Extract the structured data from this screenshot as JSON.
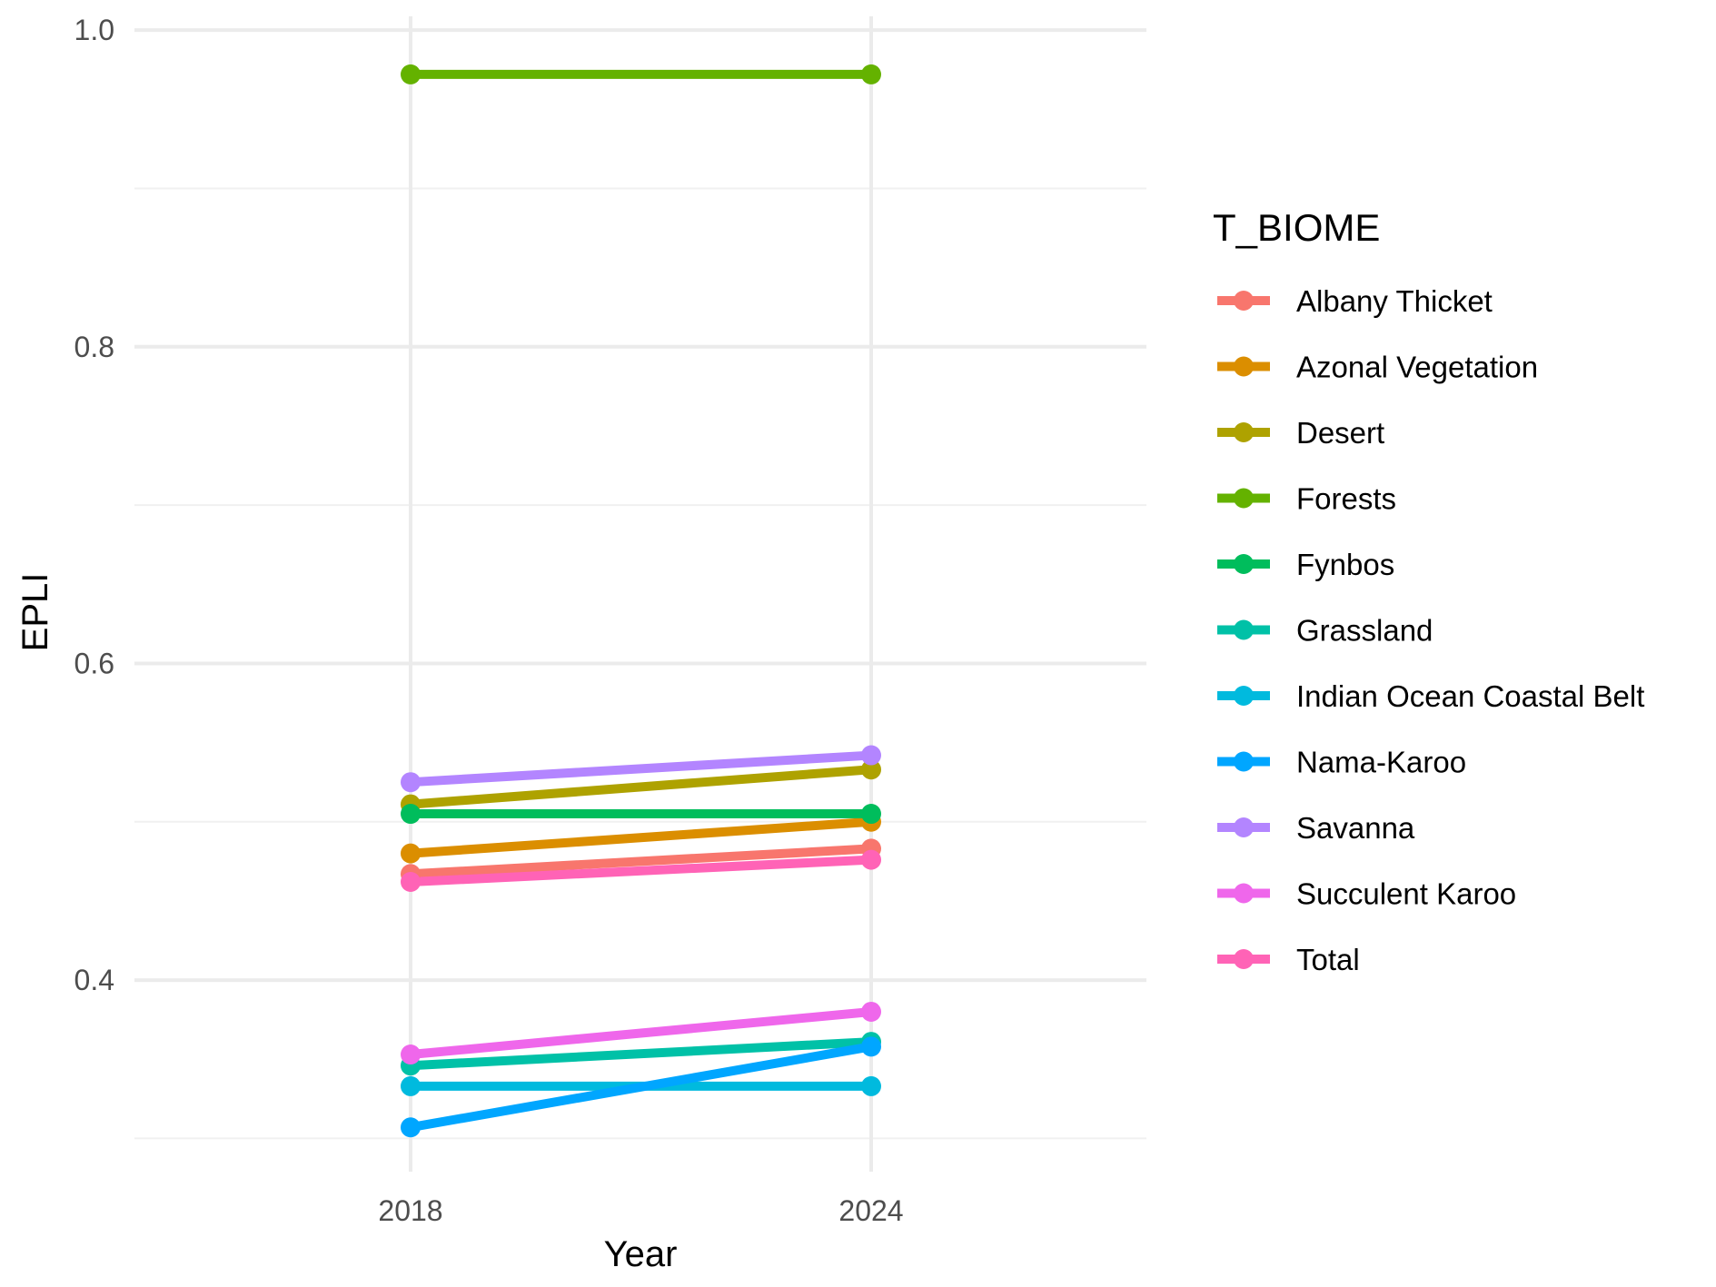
{
  "chart_data": {
    "type": "line",
    "title": "",
    "xlabel": "Year",
    "ylabel": "EPLI",
    "categories": [
      "2018",
      "2024"
    ],
    "ylim": [
      0.28,
      1.0
    ],
    "y_ticks": [
      "0.4",
      "0.6",
      "0.8",
      "1.0"
    ],
    "grid": true,
    "legend": {
      "title": "T_BIOME",
      "position": "right"
    },
    "series": [
      {
        "name": "Albany Thicket",
        "color": "#F8766D",
        "values": [
          0.467,
          0.483
        ]
      },
      {
        "name": "Azonal Vegetation",
        "color": "#DB8E00",
        "values": [
          0.48,
          0.5
        ]
      },
      {
        "name": "Desert",
        "color": "#AEA200",
        "values": [
          0.511,
          0.533
        ]
      },
      {
        "name": "Forests",
        "color": "#64B200",
        "values": [
          0.972,
          0.972
        ]
      },
      {
        "name": "Fynbos",
        "color": "#00BD5C",
        "values": [
          0.505,
          0.505
        ]
      },
      {
        "name": "Grassland",
        "color": "#00C1A7",
        "values": [
          0.346,
          0.361
        ]
      },
      {
        "name": "Indian Ocean Coastal Belt",
        "color": "#00BADE",
        "values": [
          0.333,
          0.333
        ]
      },
      {
        "name": "Nama-Karoo",
        "color": "#00A6FF",
        "values": [
          0.307,
          0.358
        ]
      },
      {
        "name": "Savanna",
        "color": "#B385FF",
        "values": [
          0.525,
          0.542
        ]
      },
      {
        "name": "Succulent Karoo",
        "color": "#EF67EB",
        "values": [
          0.353,
          0.38
        ]
      },
      {
        "name": "Total",
        "color": "#FF63B6",
        "values": [
          0.462,
          0.476
        ]
      }
    ]
  }
}
